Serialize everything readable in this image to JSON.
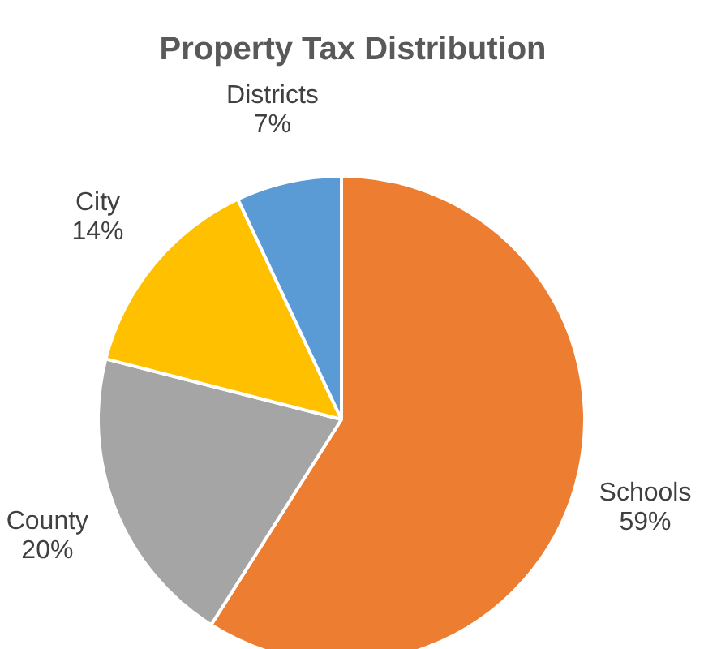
{
  "chart_data": {
    "type": "pie",
    "title": "Property Tax Distribution",
    "categories": [
      "Schools",
      "County",
      "City",
      "Districts"
    ],
    "values": [
      59,
      20,
      14,
      7
    ],
    "value_labels": [
      "59%",
      "20%",
      "14%",
      "7%"
    ],
    "colors": [
      "#ed7d31",
      "#a5a5a5",
      "#ffc000",
      "#5b9bd5"
    ]
  }
}
